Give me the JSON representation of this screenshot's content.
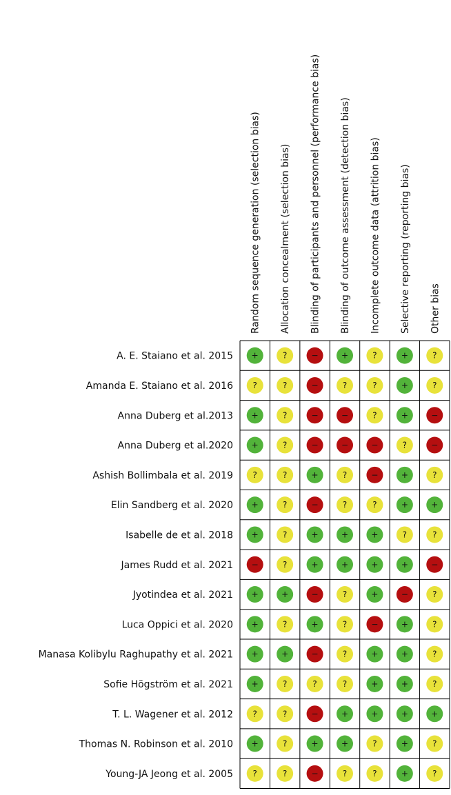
{
  "columns": [
    "Random sequence generation (selection bias)",
    "Allocation concealment (selection bias)",
    "Blinding of participants and personnel (performance bias)",
    "Blinding of outcome assessment (detection bias)",
    "Incomplete outcome data (attrition bias)",
    "Selective reporting (reporting bias)",
    "Other bias"
  ],
  "symbol_colors": [
    {
      "symbol": "+",
      "color": "#52b33a"
    },
    {
      "symbol": "?",
      "color": "#e8e23a"
    },
    {
      "symbol": "−",
      "color": "#b50f10"
    }
  ],
  "rows": [
    {
      "study": "A. E. Staiano et al. 2015",
      "judgments": [
        "+",
        "?",
        "−",
        "+",
        "?",
        "+",
        "?"
      ]
    },
    {
      "study": "Amanda E. Staiano et al. 2016",
      "judgments": [
        "?",
        "?",
        "−",
        "?",
        "?",
        "+",
        "?"
      ]
    },
    {
      "study": "Anna Duberg et al.2013",
      "judgments": [
        "+",
        "?",
        "−",
        "−",
        "?",
        "+",
        "−"
      ]
    },
    {
      "study": "Anna Duberg et al.2020",
      "judgments": [
        "+",
        "?",
        "−",
        "−",
        "−",
        "?",
        "−"
      ]
    },
    {
      "study": "Ashish Bollimbala et al. 2019",
      "judgments": [
        "?",
        "?",
        "+",
        "?",
        "−",
        "+",
        "?"
      ]
    },
    {
      "study": "Elin Sandberg et al. 2020",
      "judgments": [
        "+",
        "?",
        "−",
        "?",
        "?",
        "+",
        "+"
      ]
    },
    {
      "study": "Isabelle de et al. 2018",
      "judgments": [
        "+",
        "?",
        "+",
        "+",
        "+",
        "?",
        "?"
      ]
    },
    {
      "study": "James Rudd et al. 2021",
      "judgments": [
        "−",
        "?",
        "+",
        "+",
        "+",
        "+",
        "−"
      ]
    },
    {
      "study": "Jyotindea et al. 2021",
      "judgments": [
        "+",
        "+",
        "−",
        "?",
        "+",
        "−",
        "?"
      ]
    },
    {
      "study": "Luca Oppici et al. 2020",
      "judgments": [
        "+",
        "?",
        "+",
        "?",
        "−",
        "+",
        "?"
      ]
    },
    {
      "study": "Manasa Kolibylu Raghupathy et al. 2021",
      "judgments": [
        "+",
        "+",
        "−",
        "?",
        "+",
        "+",
        "?"
      ]
    },
    {
      "study": "Sofie Högström et al. 2021",
      "judgments": [
        "+",
        "?",
        "?",
        "?",
        "+",
        "+",
        "?"
      ]
    },
    {
      "study": "T. L. Wagener et al. 2012",
      "judgments": [
        "?",
        "?",
        "−",
        "+",
        "+",
        "+",
        "+"
      ]
    },
    {
      "study": "Thomas N. Robinson et al. 2010",
      "judgments": [
        "+",
        "?",
        "+",
        "+",
        "?",
        "+",
        "?"
      ]
    },
    {
      "study": "Young-JA Jeong et al. 2005",
      "judgments": [
        "?",
        "?",
        "−",
        "?",
        "?",
        "+",
        "?"
      ]
    }
  ]
}
